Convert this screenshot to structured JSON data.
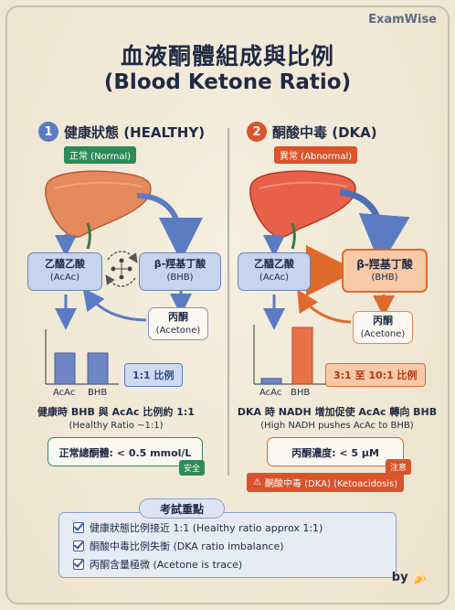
{
  "brand": "ExamWise",
  "title_zh": "血液酮體組成與比例",
  "title_en": "(Blood Ketone Ratio)",
  "left": {
    "number": "1",
    "heading": "健康狀態 (HEALTHY)",
    "tag": "正常 (Normal)",
    "acac_zh": "乙醯乙酸",
    "acac_en": "(AcAc)",
    "bhb_zh": "β-羥基丁酸",
    "bhb_en": "(BHB)",
    "acetone_zh": "丙酮",
    "acetone_en": "(Acetone)",
    "ratio_pill": "1:1 比例",
    "caption": "健康時 BHB 與 AcAc 比例約 1:1",
    "caption_sub": "(Healthy Ratio ~1:1)",
    "conc_text": "正常總酮體: < 0.5 mmol/L",
    "conc_tag": "安全"
  },
  "right": {
    "number": "2",
    "heading": "酮酸中毒 (DKA)",
    "tag": "異常 (Abnormal)",
    "acac_zh": "乙醯乙酸",
    "acac_en": "(AcAc)",
    "bhb_zh": "β-羥基丁酸",
    "bhb_en": "(BHB)",
    "acetone_zh": "丙酮",
    "acetone_en": "(Acetone)",
    "ratio_pill": "3:1 至 10:1 比例",
    "caption": "DKA 時 NADH 增加促使 AcAc 轉向 BHB",
    "caption_sub": "(High NADH pushes AcAc to BHB)",
    "conc_text": "丙酮濃度: < 5 μM",
    "conc_tag": "注意",
    "warning": "酮酸中毒 (DKA) (Ketoacidosis)"
  },
  "exam": {
    "heading": "考試重點",
    "items": [
      "健康狀態比例接近 1:1 (Healthy ratio approx 1:1)",
      "酮酸中毒比例失衡 (DKA ratio imbalance)",
      "丙酮含量極微 (Acetone is trace)"
    ]
  },
  "byline": "by",
  "chart_data": [
    {
      "type": "bar",
      "categories": [
        "AcAc",
        "BHB"
      ],
      "values": [
        1,
        1
      ]
    },
    {
      "type": "bar",
      "categories": [
        "AcAc",
        "BHB"
      ],
      "values": [
        1,
        10
      ]
    }
  ],
  "colors": {
    "navy": "#1f2a44",
    "blue_accent": "#5b7cc2",
    "orange_accent": "#e06a2c",
    "green": "#2e8b57",
    "red": "#d9532b"
  }
}
